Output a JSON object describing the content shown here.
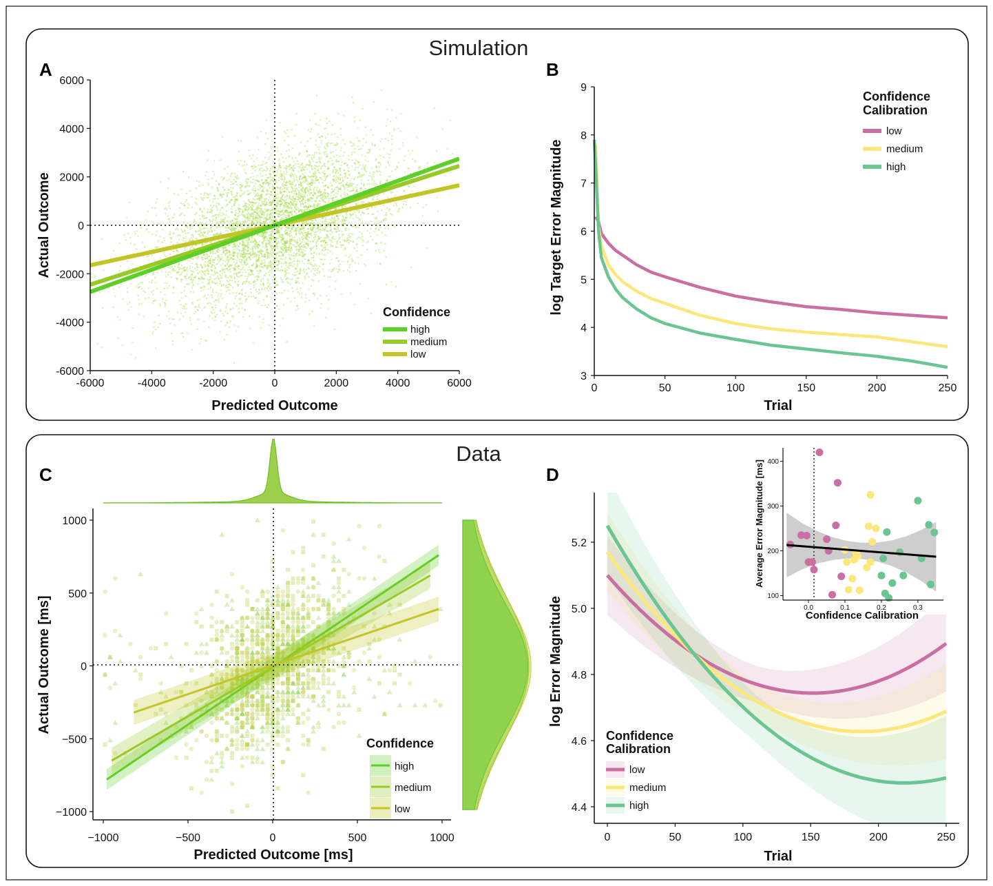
{
  "sections": {
    "top": "Simulation",
    "bottom": "Data"
  },
  "panel_labels": [
    "A",
    "B",
    "C",
    "D"
  ],
  "chart_data": [
    {
      "id": "A",
      "type": "scatter",
      "xlabel": "Predicted Outcome",
      "ylabel": "Actual Outcome",
      "xlim": [
        -6000,
        6000
      ],
      "ylim": [
        -6000,
        6000
      ],
      "xticks": [
        "-6000",
        "-4000",
        "-2000",
        "0",
        "2000",
        "4000",
        "6000"
      ],
      "yticks": [
        "-6000",
        "-4000",
        "-2000",
        "0",
        "2000",
        "4000",
        "6000"
      ],
      "scatter_color": "#9ed63a",
      "legend": {
        "title": "Confidence",
        "position": "bottom-right"
      },
      "series": [
        {
          "name": "high",
          "color": "#5dcf26",
          "x": [
            -6000,
            6000
          ],
          "y": [
            -2750,
            2750
          ]
        },
        {
          "name": "medium",
          "color": "#98c929",
          "x": [
            -6000,
            6000
          ],
          "y": [
            -2450,
            2450
          ]
        },
        {
          "name": "low",
          "color": "#c2c525",
          "x": [
            -6000,
            6000
          ],
          "y": [
            -1650,
            1650
          ]
        }
      ]
    },
    {
      "id": "B",
      "type": "line",
      "xlabel": "Trial",
      "ylabel": "log Target Error Magnitude",
      "xlim": [
        0,
        250
      ],
      "ylim": [
        3,
        9
      ],
      "xticks": [
        "0",
        "50",
        "100",
        "150",
        "200",
        "250"
      ],
      "yticks": [
        "3",
        "4",
        "5",
        "6",
        "7",
        "8",
        "9"
      ],
      "legend": {
        "title_line1": "Confidence",
        "title_line2": "Calibration",
        "position": "top-right"
      },
      "series": [
        {
          "name": "low",
          "color": "#c96fa3",
          "x": [
            1,
            3,
            5,
            10,
            15,
            20,
            30,
            40,
            50,
            75,
            100,
            125,
            150,
            175,
            200,
            225,
            250
          ],
          "y": [
            6.3,
            6.2,
            5.95,
            5.75,
            5.6,
            5.5,
            5.3,
            5.15,
            5.05,
            4.83,
            4.65,
            4.53,
            4.43,
            4.37,
            4.3,
            4.25,
            4.2
          ]
        },
        {
          "name": "medium",
          "color": "#fbe77b",
          "x": [
            1,
            3,
            5,
            10,
            15,
            20,
            30,
            40,
            50,
            75,
            100,
            125,
            150,
            175,
            200,
            225,
            250
          ],
          "y": [
            7.8,
            6.1,
            5.7,
            5.3,
            5.1,
            4.95,
            4.75,
            4.6,
            4.5,
            4.25,
            4.08,
            3.97,
            3.9,
            3.85,
            3.8,
            3.7,
            3.6
          ]
        },
        {
          "name": "high",
          "color": "#6bc593",
          "x": [
            0,
            1,
            3,
            5,
            10,
            15,
            20,
            30,
            40,
            50,
            75,
            100,
            125,
            150,
            175,
            200,
            225,
            250
          ],
          "y": [
            7.9,
            7.3,
            6.0,
            5.45,
            5.05,
            4.8,
            4.62,
            4.38,
            4.2,
            4.08,
            3.88,
            3.75,
            3.63,
            3.55,
            3.47,
            3.4,
            3.3,
            3.17
          ]
        }
      ]
    },
    {
      "id": "C",
      "type": "scatter",
      "xlabel": "Predicted Outcome [ms]",
      "ylabel": "Actual Outcome [ms]",
      "xlim": [
        -1000,
        1000
      ],
      "ylim": [
        -1000,
        1000
      ],
      "xticks": [
        "−1000",
        "−500",
        "0",
        "500",
        "1000"
      ],
      "yticks": [
        "−1000",
        "−500",
        "0",
        "500",
        "1000"
      ],
      "scatter_color": "#b7d95a",
      "legend": {
        "title": "Confidence",
        "position": "bottom-right"
      },
      "series": [
        {
          "name": "high",
          "color": "#5dcf26",
          "x": [
            -980,
            980
          ],
          "y": [
            -780,
            760
          ],
          "band": 22
        },
        {
          "name": "medium",
          "color": "#98c929",
          "x": [
            -950,
            930
          ],
          "y": [
            -650,
            620
          ],
          "band": 30
        },
        {
          "name": "low",
          "color": "#c2c525",
          "x": [
            -820,
            980
          ],
          "y": [
            -320,
            390
          ],
          "band": 28
        }
      ]
    },
    {
      "id": "D",
      "type": "line",
      "xlabel": "Trial",
      "ylabel": "log Error Magnitude",
      "xlim": [
        0,
        250
      ],
      "ylim": [
        4.35,
        5.35
      ],
      "xticks": [
        "0",
        "50",
        "100",
        "150",
        "200",
        "250"
      ],
      "yticks": [
        "4.4",
        "4.6",
        "4.8",
        "5.0",
        "5.2"
      ],
      "legend": {
        "title_line1": "Confidence",
        "title_line2": "Calibration",
        "position": "bottom-left"
      },
      "series": [
        {
          "name": "low",
          "color": "#c96fa3",
          "coef": [
            5.1,
            -0.0047,
            1.55e-05
          ],
          "band": 0.1
        },
        {
          "name": "medium",
          "color": "#fbe77b",
          "coef": [
            5.17,
            -0.0058,
            1.55e-05
          ],
          "band": 0.1
        },
        {
          "name": "high",
          "color": "#6bc593",
          "coef": [
            5.25,
            -0.0071,
            1.62e-05
          ],
          "band": 0.13
        }
      ]
    },
    {
      "id": "D-inset",
      "type": "scatter",
      "xlabel": "Confidence Calibration",
      "ylabel": "Average Error Magnitude [ms]",
      "xlim": [
        -0.07,
        0.37
      ],
      "ylim": [
        90,
        430
      ],
      "xticks": [
        "0.0",
        "0.1",
        "0.2",
        "0.3"
      ],
      "yticks": [
        "100",
        "200",
        "300",
        "400"
      ],
      "regression": {
        "x": [
          -0.06,
          0.35
        ],
        "y": [
          213,
          187
        ]
      },
      "points": [
        {
          "g": "low",
          "x": -0.05,
          "y": 214
        },
        {
          "g": "low",
          "x": -0.02,
          "y": 235
        },
        {
          "g": "low",
          "x": -0.005,
          "y": 234
        },
        {
          "g": "low",
          "x": 0.0,
          "y": 175
        },
        {
          "g": "low",
          "x": 0.01,
          "y": 175
        },
        {
          "g": "low",
          "x": 0.015,
          "y": 158
        },
        {
          "g": "low",
          "x": 0.03,
          "y": 420
        },
        {
          "g": "low",
          "x": 0.05,
          "y": 226
        },
        {
          "g": "low",
          "x": 0.055,
          "y": 200
        },
        {
          "g": "low",
          "x": 0.065,
          "y": 102
        },
        {
          "g": "low",
          "x": 0.075,
          "y": 257
        },
        {
          "g": "low",
          "x": 0.08,
          "y": 352
        },
        {
          "g": "low",
          "x": 0.09,
          "y": 143
        },
        {
          "g": "medium",
          "x": 0.1,
          "y": 202
        },
        {
          "g": "medium",
          "x": 0.105,
          "y": 175
        },
        {
          "g": "medium",
          "x": 0.11,
          "y": 113
        },
        {
          "g": "medium",
          "x": 0.12,
          "y": 138
        },
        {
          "g": "medium",
          "x": 0.125,
          "y": 180
        },
        {
          "g": "medium",
          "x": 0.13,
          "y": 195
        },
        {
          "g": "medium",
          "x": 0.135,
          "y": 188
        },
        {
          "g": "medium",
          "x": 0.14,
          "y": 112
        },
        {
          "g": "medium",
          "x": 0.16,
          "y": 163
        },
        {
          "g": "medium",
          "x": 0.165,
          "y": 255
        },
        {
          "g": "medium",
          "x": 0.17,
          "y": 325
        },
        {
          "g": "medium",
          "x": 0.175,
          "y": 220
        },
        {
          "g": "medium",
          "x": 0.185,
          "y": 250
        },
        {
          "g": "medium",
          "x": 0.17,
          "y": 175
        },
        {
          "g": "high",
          "x": 0.2,
          "y": 145
        },
        {
          "g": "high",
          "x": 0.205,
          "y": 183
        },
        {
          "g": "high",
          "x": 0.21,
          "y": 105
        },
        {
          "g": "high",
          "x": 0.215,
          "y": 242
        },
        {
          "g": "high",
          "x": 0.22,
          "y": 95
        },
        {
          "g": "high",
          "x": 0.23,
          "y": 128
        },
        {
          "g": "high",
          "x": 0.25,
          "y": 197
        },
        {
          "g": "high",
          "x": 0.26,
          "y": 145
        },
        {
          "g": "high",
          "x": 0.3,
          "y": 312
        },
        {
          "g": "high",
          "x": 0.31,
          "y": 183
        },
        {
          "g": "high",
          "x": 0.33,
          "y": 258
        },
        {
          "g": "high",
          "x": 0.335,
          "y": 125
        },
        {
          "g": "high",
          "x": 0.345,
          "y": 241
        }
      ]
    }
  ]
}
